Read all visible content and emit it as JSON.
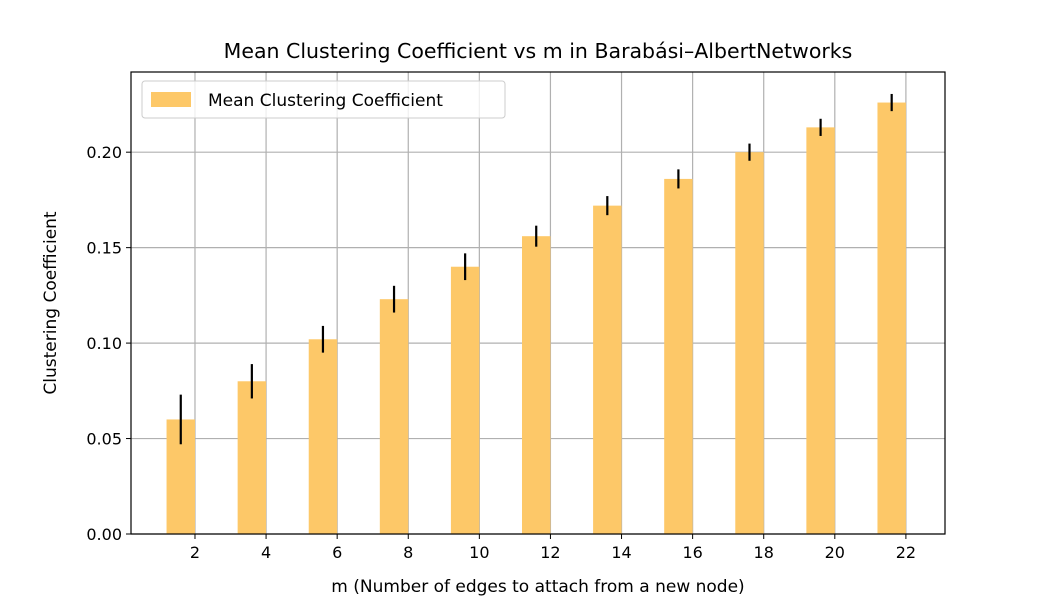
{
  "chart_data": {
    "type": "bar",
    "title": "Mean Clustering Coefficient vs m in Barabási–AlbertNetworks",
    "xlabel": "m (Number of edges to attach from a new node)",
    "ylabel": "Clustering Coefficient",
    "xticks": [
      2,
      4,
      6,
      8,
      10,
      12,
      14,
      16,
      18,
      20,
      22
    ],
    "yticks": [
      "0.00",
      "0.05",
      "0.10",
      "0.15",
      "0.20"
    ],
    "xlim": [
      0.2,
      23.1
    ],
    "ylim": [
      0,
      0.242
    ],
    "grid": true,
    "legend_position": "top-left",
    "series": [
      {
        "name": "Mean Clustering Coefficient",
        "color": "#fdc868",
        "x": [
          1.6,
          3.6,
          5.6,
          7.6,
          9.6,
          11.6,
          13.6,
          15.6,
          17.6,
          19.6,
          21.6
        ],
        "values": [
          0.06,
          0.08,
          0.102,
          0.123,
          0.14,
          0.156,
          0.172,
          0.186,
          0.2,
          0.213,
          0.226
        ],
        "errors": [
          0.013,
          0.009,
          0.007,
          0.007,
          0.007,
          0.0055,
          0.005,
          0.005,
          0.0045,
          0.0045,
          0.0045
        ]
      }
    ]
  }
}
